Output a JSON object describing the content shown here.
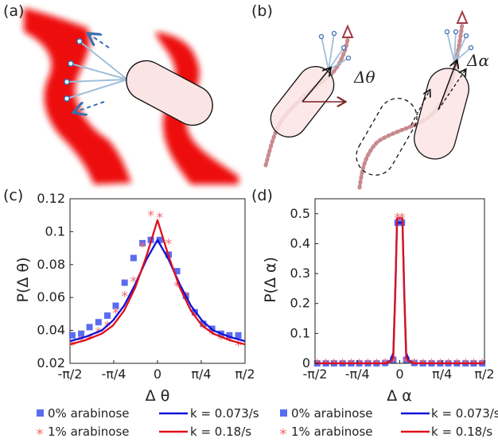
{
  "panel_labels": {
    "a": "(a)",
    "b": "(b)",
    "c": "(c)",
    "d": "(d)"
  },
  "schematic": {
    "delta_theta": "Δθ",
    "delta_alpha": "Δα"
  },
  "colors": {
    "blue": "#1010d8",
    "red": "#e0101a",
    "blue_marker": "#5a6cf0",
    "red_marker": "#ef6a6a",
    "cell_fill": "#fbe4e4",
    "trail": "#b5606a"
  },
  "chart_data": [
    {
      "type": "scatter",
      "panel": "c",
      "xlabel": "Δ θ",
      "ylabel": "P(Δ θ)",
      "xlim": [
        -1.5708,
        1.5708
      ],
      "ylim": [
        0.02,
        0.12
      ],
      "xticks": [
        -1.5708,
        -0.7854,
        0,
        0.7854,
        1.5708
      ],
      "xtick_labels": [
        "-π/2",
        "-π/4",
        "0",
        "π/4",
        "π/2"
      ],
      "yticks": [
        0.02,
        0.04,
        0.06,
        0.08,
        0.1,
        0.12
      ],
      "ytick_labels": [
        "0.02",
        "0.04",
        "0.06",
        "0.08",
        "0.1",
        "0.12"
      ],
      "series": [
        {
          "name": "0% arabinose",
          "kind": "marker",
          "marker": "square",
          "color": "#5a6cf0",
          "x": [
            -1.53,
            -1.37,
            -1.22,
            -1.06,
            -0.9,
            -0.75,
            -0.59,
            -0.43,
            -0.27,
            -0.12,
            0.04,
            0.2,
            0.35,
            0.51,
            0.67,
            0.82,
            0.98,
            1.14,
            1.29,
            1.45
          ],
          "y": [
            0.037,
            0.038,
            0.042,
            0.045,
            0.049,
            0.055,
            0.069,
            0.084,
            0.093,
            0.095,
            0.095,
            0.086,
            0.076,
            0.061,
            0.051,
            0.044,
            0.041,
            0.038,
            0.037,
            0.037
          ]
        },
        {
          "name": "1% arabinose",
          "kind": "marker",
          "marker": "star",
          "color": "#ef6a6a",
          "x": [
            -1.53,
            -1.37,
            -1.22,
            -1.06,
            -0.9,
            -0.75,
            -0.59,
            -0.43,
            -0.27,
            -0.12,
            0.04,
            0.2,
            0.35,
            0.51,
            0.67,
            0.82,
            0.98,
            1.14,
            1.29,
            1.45
          ],
          "y": [
            0.031,
            0.034,
            0.035,
            0.039,
            0.043,
            0.051,
            0.061,
            0.07,
            0.091,
            0.11,
            0.109,
            0.093,
            0.067,
            0.061,
            0.049,
            0.042,
            0.038,
            0.035,
            0.034,
            0.031
          ]
        },
        {
          "name": "k = 0.073/s",
          "kind": "line",
          "color": "#1010d8",
          "x": [
            -1.5708,
            -1.3,
            -1.0,
            -0.8,
            -0.6,
            -0.4,
            -0.2,
            0,
            0.2,
            0.4,
            0.6,
            0.8,
            1.0,
            1.3,
            1.5708
          ],
          "y": [
            0.0335,
            0.036,
            0.04,
            0.046,
            0.055,
            0.068,
            0.083,
            0.095,
            0.083,
            0.068,
            0.055,
            0.046,
            0.04,
            0.036,
            0.0335
          ]
        },
        {
          "name": "k = 0.18/s",
          "kind": "line",
          "color": "#e0101a",
          "x": [
            -1.5708,
            -1.3,
            -1.0,
            -0.8,
            -0.6,
            -0.4,
            -0.2,
            0,
            0.2,
            0.4,
            0.6,
            0.8,
            1.0,
            1.3,
            1.5708
          ],
          "y": [
            0.0315,
            0.034,
            0.038,
            0.043,
            0.052,
            0.066,
            0.085,
            0.107,
            0.085,
            0.066,
            0.052,
            0.043,
            0.038,
            0.034,
            0.0315
          ]
        }
      ]
    },
    {
      "type": "scatter",
      "panel": "d",
      "xlabel": "Δ α",
      "ylabel": "P(Δ α)",
      "xlim": [
        -1.5708,
        1.5708
      ],
      "ylim": [
        0,
        0.55
      ],
      "xticks": [
        -1.5708,
        -0.7854,
        0,
        0.7854,
        1.5708
      ],
      "xtick_labels": [
        "-π/2",
        "-π/4",
        "0",
        "π/4",
        "π/2"
      ],
      "yticks": [
        0,
        0.1,
        0.2,
        0.3,
        0.4,
        0.5
      ],
      "ytick_labels": [
        "0",
        "0.1",
        "0.2",
        "0.3",
        "0.4",
        "0.5"
      ],
      "series": [
        {
          "name": "0% arabinose",
          "kind": "marker",
          "marker": "square",
          "color": "#5a6cf0",
          "x": [
            -1.53,
            -1.37,
            -1.22,
            -1.06,
            -0.9,
            -0.75,
            -0.59,
            -0.43,
            -0.27,
            -0.12,
            -0.04,
            0.04,
            0.12,
            0.27,
            0.43,
            0.59,
            0.75,
            0.9,
            1.06,
            1.22,
            1.37,
            1.53
          ],
          "y": [
            0,
            0,
            0,
            0,
            0,
            0,
            0,
            0,
            0.001,
            0.012,
            0.47,
            0.47,
            0.012,
            0.001,
            0,
            0,
            0,
            0,
            0,
            0,
            0,
            0
          ]
        },
        {
          "name": "1% arabinose",
          "kind": "marker",
          "marker": "star",
          "color": "#ef6a6a",
          "x": [
            -1.53,
            -1.37,
            -1.22,
            -1.06,
            -0.9,
            -0.75,
            -0.59,
            -0.43,
            -0.27,
            -0.12,
            -0.04,
            0.04,
            0.12,
            0.27,
            0.43,
            0.59,
            0.75,
            0.9,
            1.06,
            1.22,
            1.37,
            1.53
          ],
          "y": [
            0,
            0,
            0,
            0,
            0,
            0,
            0,
            0,
            0.001,
            0.008,
            0.487,
            0.487,
            0.008,
            0.001,
            0,
            0,
            0,
            0,
            0,
            0,
            0,
            0
          ]
        },
        {
          "name": "k = 0.073/s",
          "kind": "line",
          "color": "#1010d8",
          "x": [
            -1.5708,
            -0.25,
            -0.17,
            -0.12,
            -0.09,
            -0.05,
            0.05,
            0.09,
            0.12,
            0.17,
            0.25,
            1.5708
          ],
          "y": [
            0,
            0,
            0.01,
            0.035,
            0.2,
            0.47,
            0.47,
            0.2,
            0.035,
            0.01,
            0,
            0
          ]
        },
        {
          "name": "k = 0.18/s",
          "kind": "line",
          "color": "#e0101a",
          "x": [
            -1.5708,
            -0.25,
            -0.16,
            -0.12,
            -0.08,
            -0.05,
            0.05,
            0.08,
            0.12,
            0.16,
            0.25,
            1.5708
          ],
          "y": [
            0,
            0,
            0.008,
            0.02,
            0.25,
            0.485,
            0.485,
            0.25,
            0.02,
            0.008,
            0,
            0
          ]
        }
      ]
    }
  ]
}
